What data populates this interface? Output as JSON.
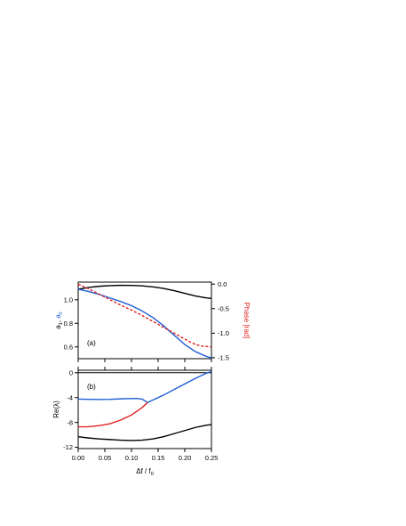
{
  "chart_data": [
    {
      "type": "line",
      "panel_label": "(a)",
      "xlim": [
        0,
        0.25
      ],
      "ylim": [
        0.5,
        1.15
      ],
      "y2lim": [
        -1.52,
        0.04
      ],
      "xticks": [
        0.0,
        0.05,
        0.1,
        0.15,
        0.2,
        0.25
      ],
      "yticks": [
        0.6,
        0.8,
        1.0
      ],
      "ytick_labels": [
        "0.6",
        "0.8",
        "1.0"
      ],
      "y2ticks": [
        0.0,
        -0.5,
        -1.0,
        -1.5
      ],
      "y2tick_labels": [
        "0.0",
        "-0.5",
        "-1.0",
        "-1.5"
      ],
      "ylabel": {
        "part1": "a",
        "sub1": "1",
        "sep": ", ",
        "part2": "a",
        "sub2": "2"
      },
      "y2label": "Phase [rad]",
      "grid": false,
      "series": [
        {
          "color": "#000000",
          "dash": "none",
          "axis": "y",
          "x": [
            0,
            0.02,
            0.04,
            0.06,
            0.08,
            0.1,
            0.12,
            0.14,
            0.16,
            0.18,
            0.2,
            0.22,
            0.24,
            0.25
          ],
          "y": [
            1.09,
            1.105,
            1.115,
            1.12,
            1.123,
            1.122,
            1.118,
            1.11,
            1.097,
            1.078,
            1.055,
            1.032,
            1.016,
            1.012
          ]
        },
        {
          "color": "#1f5fd6",
          "dash": "none",
          "axis": "y",
          "x": [
            0,
            0.02,
            0.04,
            0.06,
            0.08,
            0.1,
            0.12,
            0.14,
            0.16,
            0.18,
            0.2,
            0.22,
            0.24,
            0.25
          ],
          "y": [
            1.09,
            1.07,
            1.045,
            1.015,
            0.985,
            0.95,
            0.905,
            0.85,
            0.78,
            0.7,
            0.62,
            0.56,
            0.52,
            0.505
          ]
        },
        {
          "color": "#e02020",
          "dash": "3,2",
          "axis": "y2",
          "x": [
            0,
            0.02,
            0.04,
            0.06,
            0.08,
            0.1,
            0.12,
            0.14,
            0.16,
            0.18,
            0.2,
            0.21,
            0.22,
            0.23,
            0.24,
            0.25
          ],
          "y": [
            0.0,
            -0.1,
            -0.21,
            -0.32,
            -0.43,
            -0.53,
            -0.64,
            -0.76,
            -0.88,
            -1.0,
            -1.12,
            -1.18,
            -1.23,
            -1.26,
            -1.27,
            -1.28
          ]
        }
      ]
    },
    {
      "type": "line",
      "panel_label": "(b)",
      "xlabel": {
        "main": "Δf / f",
        "sub": "0"
      },
      "ylabel": "Re(λ)",
      "xlim": [
        0,
        0.25
      ],
      "ylim": [
        -12.2,
        0.4
      ],
      "xticks": [
        0.0,
        0.05,
        0.1,
        0.15,
        0.2,
        0.25
      ],
      "xtick_labels": [
        "0.00",
        "0.05",
        "0.10",
        "0.15",
        "0.20",
        "0.25"
      ],
      "yticks": [
        0,
        -4,
        -8,
        -12
      ],
      "ytick_labels": [
        "0",
        "-4",
        "-8",
        "-12"
      ],
      "zero_line": true,
      "grid": false,
      "series": [
        {
          "color": "#000000",
          "dash": "none",
          "x": [
            0,
            0.02,
            0.04,
            0.06,
            0.08,
            0.1,
            0.12,
            0.14,
            0.16,
            0.18,
            0.2,
            0.22,
            0.24,
            0.25
          ],
          "y": [
            -10.3,
            -10.5,
            -10.65,
            -10.75,
            -10.85,
            -10.9,
            -10.85,
            -10.65,
            -10.3,
            -9.8,
            -9.3,
            -8.8,
            -8.45,
            -8.35
          ]
        },
        {
          "color": "#1f5fd6",
          "dash": "none",
          "x": [
            0,
            0.02,
            0.04,
            0.06,
            0.08,
            0.1,
            0.11,
            0.12,
            0.125,
            0.13
          ],
          "y": [
            -4.25,
            -4.28,
            -4.3,
            -4.28,
            -4.2,
            -4.15,
            -4.13,
            -4.25,
            -4.5,
            -4.8
          ]
        },
        {
          "color": "#1f5fd6",
          "dash": "none",
          "x": [
            0.13,
            0.14,
            0.16,
            0.18,
            0.2,
            0.22,
            0.24,
            0.25
          ],
          "y": [
            -4.8,
            -4.4,
            -3.6,
            -2.7,
            -1.8,
            -0.9,
            -0.1,
            0.2
          ]
        },
        {
          "color": "#e02020",
          "dash": "none",
          "x": [
            0,
            0.02,
            0.04,
            0.06,
            0.08,
            0.1,
            0.12,
            0.13
          ],
          "y": [
            -8.7,
            -8.68,
            -8.5,
            -8.2,
            -7.6,
            -6.8,
            -5.6,
            -4.8
          ]
        }
      ]
    }
  ]
}
